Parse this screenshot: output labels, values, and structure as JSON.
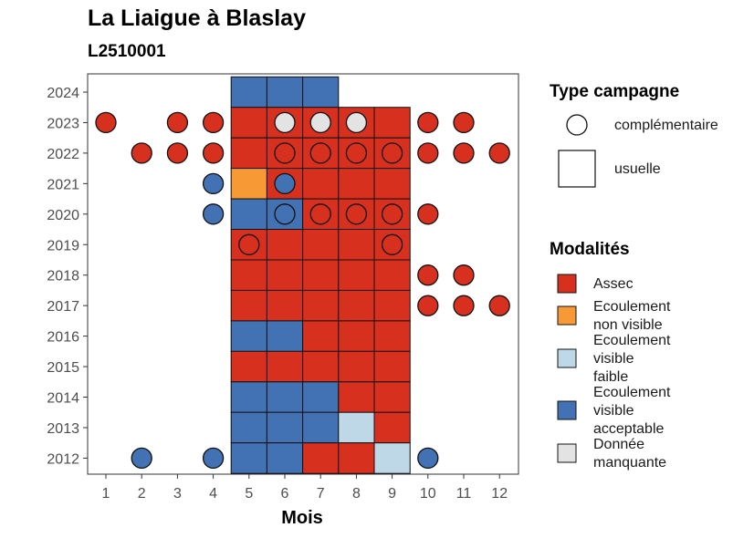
{
  "chart_data": {
    "type": "heatmap",
    "title": "La Liaigue à Blaslay",
    "subtitle": "L2510001",
    "xlabel": "Mois",
    "ylabel": "",
    "x_ticks": [
      "1",
      "2",
      "3",
      "4",
      "5",
      "6",
      "7",
      "8",
      "9",
      "10",
      "11",
      "12"
    ],
    "y_ticks": [
      "2024",
      "2023",
      "2022",
      "2021",
      "2020",
      "2019",
      "2018",
      "2017",
      "2016",
      "2015",
      "2014",
      "2013",
      "2012"
    ],
    "grid": false,
    "legend_position": "right",
    "colors": {
      "assec": "#d7301f",
      "ecoulement_non_visible": "#f79a35",
      "ecoulement_visible_faible": "#bfd8e8",
      "ecoulement_visible_acceptable": "#4272b4",
      "donnee_manquante": "#e3e3e3"
    },
    "legend_type": {
      "title": "Type campagne",
      "items": [
        {
          "label": "complémentaire",
          "shape": "circle"
        },
        {
          "label": "usuelle",
          "shape": "square"
        }
      ]
    },
    "legend_modalites": {
      "title": "Modalités",
      "items": [
        {
          "key": "assec",
          "lines": [
            "Assec"
          ]
        },
        {
          "key": "ecoulement_non_visible",
          "lines": [
            "Ecoulement",
            "non visible"
          ]
        },
        {
          "key": "ecoulement_visible_faible",
          "lines": [
            "Ecoulement",
            "visible",
            "faible"
          ]
        },
        {
          "key": "ecoulement_visible_acceptable",
          "lines": [
            "Ecoulement",
            "visible",
            "acceptable"
          ]
        },
        {
          "key": "donnee_manquante",
          "lines": [
            "Donnée",
            "manquante"
          ]
        }
      ]
    },
    "usuelle": [
      {
        "year": "2024",
        "month": 5,
        "value": "ecoulement_visible_acceptable"
      },
      {
        "year": "2024",
        "month": 6,
        "value": "ecoulement_visible_acceptable"
      },
      {
        "year": "2024",
        "month": 7,
        "value": "ecoulement_visible_acceptable"
      },
      {
        "year": "2023",
        "month": 5,
        "value": "assec"
      },
      {
        "year": "2023",
        "month": 6,
        "value": "assec"
      },
      {
        "year": "2023",
        "month": 7,
        "value": "assec"
      },
      {
        "year": "2023",
        "month": 8,
        "value": "assec"
      },
      {
        "year": "2023",
        "month": 9,
        "value": "assec"
      },
      {
        "year": "2022",
        "month": 5,
        "value": "assec"
      },
      {
        "year": "2022",
        "month": 6,
        "value": "assec"
      },
      {
        "year": "2022",
        "month": 7,
        "value": "assec"
      },
      {
        "year": "2022",
        "month": 8,
        "value": "assec"
      },
      {
        "year": "2022",
        "month": 9,
        "value": "assec"
      },
      {
        "year": "2021",
        "month": 5,
        "value": "ecoulement_non_visible"
      },
      {
        "year": "2021",
        "month": 6,
        "value": "assec"
      },
      {
        "year": "2021",
        "month": 7,
        "value": "assec"
      },
      {
        "year": "2021",
        "month": 8,
        "value": "assec"
      },
      {
        "year": "2021",
        "month": 9,
        "value": "assec"
      },
      {
        "year": "2020",
        "month": 5,
        "value": "ecoulement_visible_acceptable"
      },
      {
        "year": "2020",
        "month": 6,
        "value": "ecoulement_visible_acceptable"
      },
      {
        "year": "2020",
        "month": 7,
        "value": "assec"
      },
      {
        "year": "2020",
        "month": 8,
        "value": "assec"
      },
      {
        "year": "2020",
        "month": 9,
        "value": "assec"
      },
      {
        "year": "2019",
        "month": 5,
        "value": "assec"
      },
      {
        "year": "2019",
        "month": 6,
        "value": "assec"
      },
      {
        "year": "2019",
        "month": 7,
        "value": "assec"
      },
      {
        "year": "2019",
        "month": 8,
        "value": "assec"
      },
      {
        "year": "2019",
        "month": 9,
        "value": "assec"
      },
      {
        "year": "2018",
        "month": 5,
        "value": "assec"
      },
      {
        "year": "2018",
        "month": 6,
        "value": "assec"
      },
      {
        "year": "2018",
        "month": 7,
        "value": "assec"
      },
      {
        "year": "2018",
        "month": 8,
        "value": "assec"
      },
      {
        "year": "2018",
        "month": 9,
        "value": "assec"
      },
      {
        "year": "2017",
        "month": 5,
        "value": "assec"
      },
      {
        "year": "2017",
        "month": 6,
        "value": "assec"
      },
      {
        "year": "2017",
        "month": 7,
        "value": "assec"
      },
      {
        "year": "2017",
        "month": 8,
        "value": "assec"
      },
      {
        "year": "2017",
        "month": 9,
        "value": "assec"
      },
      {
        "year": "2016",
        "month": 5,
        "value": "ecoulement_visible_acceptable"
      },
      {
        "year": "2016",
        "month": 6,
        "value": "ecoulement_visible_acceptable"
      },
      {
        "year": "2016",
        "month": 7,
        "value": "assec"
      },
      {
        "year": "2016",
        "month": 8,
        "value": "assec"
      },
      {
        "year": "2016",
        "month": 9,
        "value": "assec"
      },
      {
        "year": "2015",
        "month": 5,
        "value": "assec"
      },
      {
        "year": "2015",
        "month": 6,
        "value": "assec"
      },
      {
        "year": "2015",
        "month": 7,
        "value": "assec"
      },
      {
        "year": "2015",
        "month": 8,
        "value": "assec"
      },
      {
        "year": "2015",
        "month": 9,
        "value": "assec"
      },
      {
        "year": "2014",
        "month": 5,
        "value": "ecoulement_visible_acceptable"
      },
      {
        "year": "2014",
        "month": 6,
        "value": "ecoulement_visible_acceptable"
      },
      {
        "year": "2014",
        "month": 7,
        "value": "ecoulement_visible_acceptable"
      },
      {
        "year": "2014",
        "month": 8,
        "value": "assec"
      },
      {
        "year": "2014",
        "month": 9,
        "value": "assec"
      },
      {
        "year": "2013",
        "month": 5,
        "value": "ecoulement_visible_acceptable"
      },
      {
        "year": "2013",
        "month": 6,
        "value": "ecoulement_visible_acceptable"
      },
      {
        "year": "2013",
        "month": 7,
        "value": "ecoulement_visible_acceptable"
      },
      {
        "year": "2013",
        "month": 8,
        "value": "ecoulement_visible_faible"
      },
      {
        "year": "2013",
        "month": 9,
        "value": "assec"
      },
      {
        "year": "2012",
        "month": 5,
        "value": "ecoulement_visible_acceptable"
      },
      {
        "year": "2012",
        "month": 6,
        "value": "ecoulement_visible_acceptable"
      },
      {
        "year": "2012",
        "month": 7,
        "value": "assec"
      },
      {
        "year": "2012",
        "month": 8,
        "value": "assec"
      },
      {
        "year": "2012",
        "month": 9,
        "value": "ecoulement_visible_faible"
      }
    ],
    "complementaire": [
      {
        "year": "2023",
        "month": 1,
        "value": "assec"
      },
      {
        "year": "2023",
        "month": 3,
        "value": "assec"
      },
      {
        "year": "2023",
        "month": 4,
        "value": "assec"
      },
      {
        "year": "2023",
        "month": 6,
        "value": "donnee_manquante"
      },
      {
        "year": "2023",
        "month": 7,
        "value": "donnee_manquante"
      },
      {
        "year": "2023",
        "month": 8,
        "value": "donnee_manquante"
      },
      {
        "year": "2023",
        "month": 10,
        "value": "assec"
      },
      {
        "year": "2023",
        "month": 11,
        "value": "assec"
      },
      {
        "year": "2022",
        "month": 2,
        "value": "assec"
      },
      {
        "year": "2022",
        "month": 3,
        "value": "assec"
      },
      {
        "year": "2022",
        "month": 4,
        "value": "assec"
      },
      {
        "year": "2022",
        "month": 6,
        "value": "assec"
      },
      {
        "year": "2022",
        "month": 7,
        "value": "assec"
      },
      {
        "year": "2022",
        "month": 8,
        "value": "assec"
      },
      {
        "year": "2022",
        "month": 9,
        "value": "assec"
      },
      {
        "year": "2022",
        "month": 10,
        "value": "assec"
      },
      {
        "year": "2022",
        "month": 11,
        "value": "assec"
      },
      {
        "year": "2022",
        "month": 12,
        "value": "assec"
      },
      {
        "year": "2021",
        "month": 4,
        "value": "ecoulement_visible_acceptable"
      },
      {
        "year": "2021",
        "month": 6,
        "value": "ecoulement_visible_acceptable"
      },
      {
        "year": "2020",
        "month": 4,
        "value": "ecoulement_visible_acceptable"
      },
      {
        "year": "2020",
        "month": 6,
        "value": "ecoulement_visible_acceptable"
      },
      {
        "year": "2020",
        "month": 7,
        "value": "assec"
      },
      {
        "year": "2020",
        "month": 8,
        "value": "assec"
      },
      {
        "year": "2020",
        "month": 9,
        "value": "assec"
      },
      {
        "year": "2020",
        "month": 10,
        "value": "assec"
      },
      {
        "year": "2019",
        "month": 5,
        "value": "assec"
      },
      {
        "year": "2019",
        "month": 9,
        "value": "assec"
      },
      {
        "year": "2018",
        "month": 10,
        "value": "assec"
      },
      {
        "year": "2018",
        "month": 11,
        "value": "assec"
      },
      {
        "year": "2017",
        "month": 10,
        "value": "assec"
      },
      {
        "year": "2017",
        "month": 11,
        "value": "assec"
      },
      {
        "year": "2017",
        "month": 12,
        "value": "assec"
      },
      {
        "year": "2012",
        "month": 2,
        "value": "ecoulement_visible_acceptable"
      },
      {
        "year": "2012",
        "month": 4,
        "value": "ecoulement_visible_acceptable"
      },
      {
        "year": "2012",
        "month": 10,
        "value": "ecoulement_visible_acceptable"
      }
    ]
  }
}
